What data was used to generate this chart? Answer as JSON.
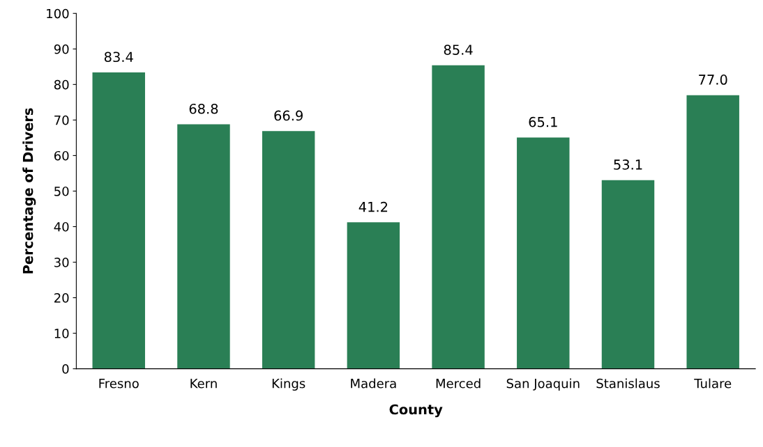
{
  "chart_data": {
    "type": "bar",
    "xlabel": "County",
    "ylabel": "Percentage of Drivers",
    "categories": [
      "Fresno",
      "Kern",
      "Kings",
      "Madera",
      "Merced",
      "San Joaquin",
      "Stanislaus",
      "Tulare"
    ],
    "values": [
      83.4,
      68.8,
      66.9,
      41.2,
      85.4,
      65.1,
      53.1,
      77.0
    ],
    "value_labels": [
      "83.4",
      "68.8",
      "66.9",
      "41.2",
      "85.4",
      "65.1",
      "53.1",
      "77.0"
    ],
    "color": "#2a7f55",
    "ylim": [
      0,
      100
    ],
    "yticks": [
      0,
      10,
      20,
      30,
      40,
      50,
      60,
      70,
      80,
      90,
      100
    ],
    "grid": false,
    "legend": false
  }
}
